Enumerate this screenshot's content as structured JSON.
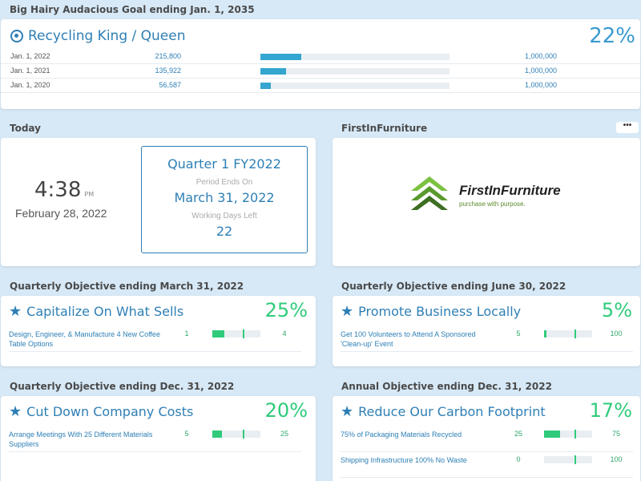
{
  "bhag": {
    "heading": "Big Hairy Audacious Goal ending Jan. 1, 2035",
    "title": "Recycling King / Queen",
    "percent": "22%",
    "rows": [
      {
        "date": "Jan. 1, 2022",
        "value": "215,800",
        "target": "1,000,000",
        "progress": 0.216
      },
      {
        "date": "Jan. 1, 2021",
        "value": "135,922",
        "target": "1,000,000",
        "progress": 0.136
      },
      {
        "date": "Jan. 1, 2020",
        "value": "56,587",
        "target": "1,000,000",
        "progress": 0.057
      }
    ]
  },
  "today": {
    "heading": "Today",
    "time": "4:38",
    "ampm": "PM",
    "date": "February 28, 2022",
    "quarter": "Quarter 1 FY2022",
    "period_label": "Period Ends On",
    "period_end": "March 31, 2022",
    "days_label": "Working Days Left",
    "days_left": "22"
  },
  "company": {
    "heading": "FirstInFurniture",
    "menu": "•••",
    "logo_name": "FirstInFurniture",
    "logo_tagline": "purchase with purpose."
  },
  "objectives": [
    {
      "heading": "Quarterly Objective ending March 31, 2022",
      "title": "Capitalize On What Sells",
      "percent": "25%",
      "results": [
        {
          "name": "Design, Engineer, & Manufacture 4 New Coffee Table Options",
          "start": "1",
          "end": "4",
          "progress": 0.25
        }
      ]
    },
    {
      "heading": "Quarterly Objective ending June 30, 2022",
      "title": "Promote Business Locally",
      "percent": "5%",
      "results": [
        {
          "name": "Get 100 Volunteers to Attend A Sponsored 'Clean-up' Event",
          "start": "5",
          "end": "100",
          "progress": 0.05
        }
      ]
    },
    {
      "heading": "Quarterly Objective ending Dec. 31, 2022",
      "title": "Cut Down Company Costs",
      "percent": "20%",
      "results": [
        {
          "name": "Arrange Meetings With 25 Different Materials Suppliers",
          "start": "5",
          "end": "25",
          "progress": 0.2
        }
      ]
    },
    {
      "heading": "Annual Objective ending Dec. 31, 2022",
      "title": "Reduce Our Carbon Footprint",
      "percent": "17%",
      "results": [
        {
          "name": "75% of Packaging Materials Recycled",
          "start": "25",
          "end": "75",
          "progress": 0.33
        },
        {
          "name": "Shipping Infrastructure 100% No Waste",
          "start": "0",
          "end": "100",
          "progress": 0.0
        }
      ]
    }
  ],
  "colors": {
    "accent": "#2e7fb5",
    "progress_blue": "#35a6cf",
    "progress_green": "#2fcb7a",
    "background": "#d7e9f7"
  }
}
